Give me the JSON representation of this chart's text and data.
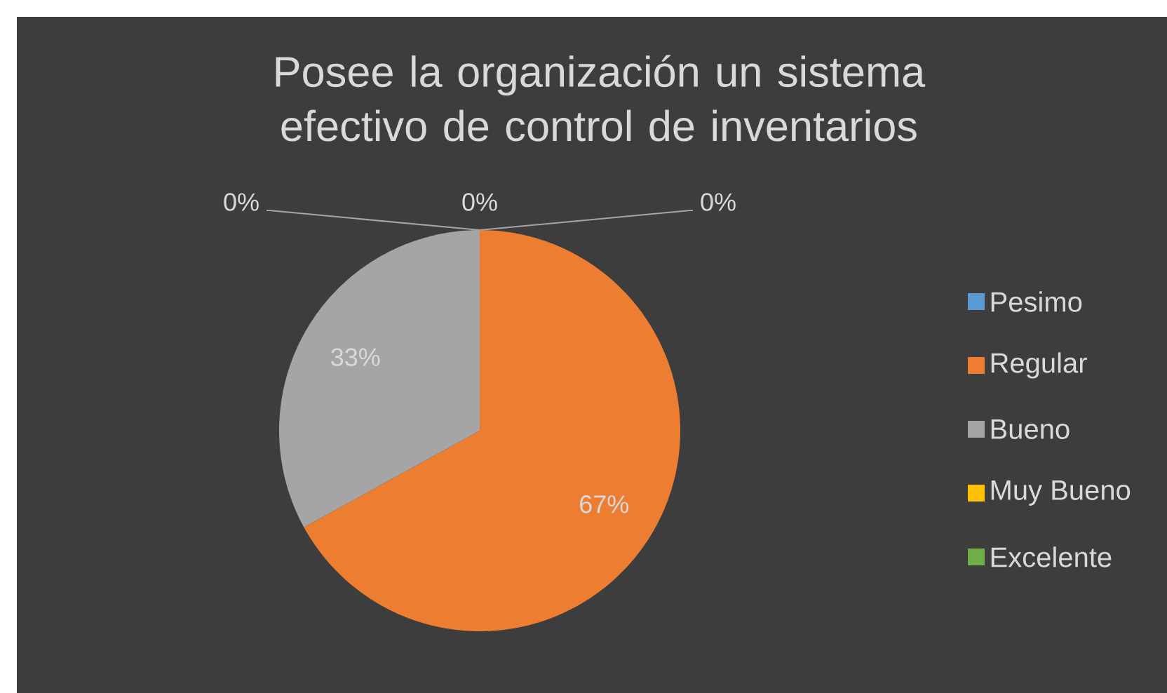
{
  "chart_data": {
    "type": "pie",
    "title": "Posee la organización un sistema efectivo de control de inventarios",
    "categories": [
      "Pesimo",
      "Regular",
      "Bueno",
      "Muy Bueno",
      "Excelente"
    ],
    "values": [
      0,
      67,
      33,
      0,
      0
    ],
    "value_labels": [
      "0%",
      "67%",
      "33%",
      "0%",
      "0%"
    ],
    "colors": [
      "#5b9bd5",
      "#ed7d31",
      "#a5a5a5",
      "#ffc000",
      "#70ad47"
    ],
    "legend": "right"
  }
}
